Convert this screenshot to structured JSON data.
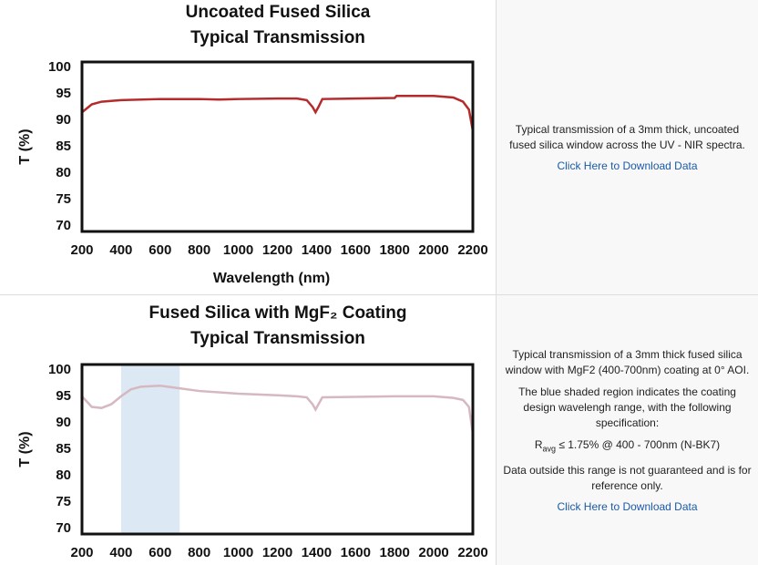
{
  "chart_data": [
    {
      "type": "line",
      "title": [
        "Uncoated Fused Silica",
        "Typical Transmission"
      ],
      "ylabel": "T (%)",
      "xlabel": "Wavelength (nm)",
      "x": [
        200,
        250,
        300,
        400,
        600,
        800,
        900,
        1000,
        1200,
        1300,
        1350,
        1380,
        1395,
        1410,
        1430,
        1600,
        1800,
        1810,
        2000,
        2100,
        2150,
        2180,
        2200
      ],
      "values": [
        91.5,
        93,
        93.5,
        93.8,
        94,
        94,
        93.9,
        94,
        94.1,
        94.1,
        93.8,
        92.5,
        91.5,
        92.5,
        94,
        94.1,
        94.2,
        94.6,
        94.6,
        94.3,
        93.5,
        92,
        88
      ],
      "color": "#b52a2a",
      "xlim": [
        200,
        2200
      ],
      "ylim": [
        69,
        101
      ],
      "xticks": [
        200,
        400,
        600,
        800,
        1000,
        1200,
        1400,
        1600,
        1800,
        2000,
        2200
      ],
      "yticks": [
        70,
        75,
        80,
        85,
        90,
        95,
        100
      ]
    },
    {
      "type": "line",
      "title": [
        "Fused Silica with MgF₂ Coating",
        "Typical Transmission"
      ],
      "ylabel": "T (%)",
      "x": [
        200,
        250,
        300,
        350,
        400,
        450,
        500,
        600,
        700,
        800,
        1000,
        1200,
        1300,
        1350,
        1380,
        1395,
        1410,
        1430,
        1600,
        1800,
        2000,
        2100,
        2150,
        2180,
        2200
      ],
      "values": [
        95,
        93,
        92.8,
        93.5,
        95,
        96.3,
        96.8,
        97,
        96.5,
        96,
        95.5,
        95.2,
        95,
        94.8,
        93.5,
        92.5,
        93.5,
        94.8,
        94.9,
        95,
        95,
        94.7,
        94.3,
        93,
        88
      ],
      "color": "#d6b8c0",
      "highlight": {
        "xrange": [
          400,
          700
        ],
        "color": "#dce9f5"
      },
      "xlim": [
        200,
        2200
      ],
      "ylim": [
        69,
        101
      ],
      "xticks": [
        200,
        400,
        600,
        800,
        1000,
        1200,
        1400,
        1600,
        1800,
        2000,
        2200
      ],
      "yticks": [
        70,
        75,
        80,
        85,
        90,
        95,
        100
      ]
    }
  ],
  "panels": [
    {
      "paragraphs": [
        "Typical transmission of a 3mm thick, uncoated fused silica window across the UV - NIR spectra."
      ],
      "link": "Click Here to Download Data"
    },
    {
      "paragraphs": [
        "Typical transmission of a 3mm thick fused silica window with MgF2 (400-700nm) coating at 0° AOI.",
        "The blue shaded region indicates the coating design wavelengh range, with the following specification:"
      ],
      "spec": {
        "symbol": "R",
        "subscript": "avg",
        "text": " ≤ 1.75% @ 400 - 700nm (N-BK7)"
      },
      "note": "Data outside this range is not guaranteed and is for reference only.",
      "link": "Click Here to Download Data"
    }
  ]
}
